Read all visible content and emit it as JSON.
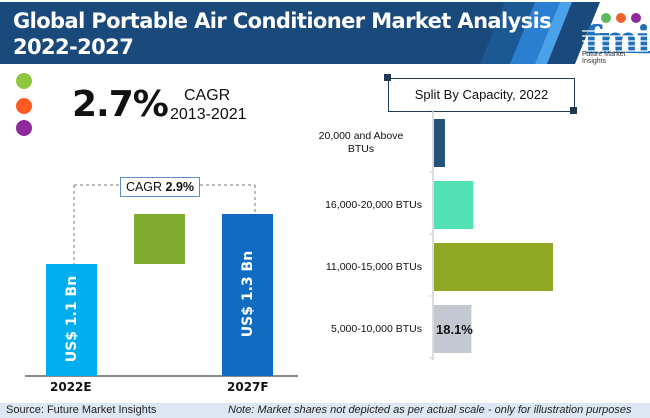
{
  "header": {
    "title_line1": "Global Portable Air Conditioner Market Analysis",
    "title_line2": "2022-2027",
    "brand_color": "#1a4a7c",
    "logo_text": "Future Market Insights",
    "logo_letters": "fmi"
  },
  "highlight": {
    "value": "2.7%",
    "label": "CAGR",
    "period": "2013-2021",
    "dot_colors": [
      "#8dc63f",
      "#ff5a1f",
      "#8e2a9b"
    ]
  },
  "footer": {
    "source": "Source: Future Market Insights",
    "note": "Note: Market shares not depicted as per actual scale - only for illustration purposes"
  },
  "chart_data": [
    {
      "type": "bar",
      "title": "Market Value",
      "categories": [
        "2022E",
        "2027F"
      ],
      "values": [
        1.1,
        1.3
      ],
      "value_labels": [
        "US$ 1.1 Bn",
        "US$ 1.3 Bn"
      ],
      "unit": "US$ Bn",
      "colors": [
        "#00adef",
        "#0f6cc2"
      ],
      "growth_color": "#7fac2f",
      "annotation": {
        "label": "CAGR",
        "value": "2.9%"
      },
      "xlabel": "",
      "ylabel": "",
      "grid": false
    },
    {
      "type": "bar",
      "orientation": "horizontal",
      "title": "Split By Capacity, 2022",
      "categories": [
        "20,000 and Above BTUs",
        "16,000-20,000 BTUs",
        "11,000-15,000 BTUs",
        "5,000-10,000 BTUs"
      ],
      "category_lines": [
        [
          "20,000 and Above",
          "BTUs"
        ],
        [
          "16,000-20,000 BTUs"
        ],
        [
          "11,000-15,000 BTUs"
        ],
        [
          "5,000-10,000 BTUs"
        ]
      ],
      "values": [
        5.3,
        19.0,
        57.6,
        18.1
      ],
      "unit": "%",
      "data_labels": [
        "",
        "",
        "",
        "18.1%"
      ],
      "colors": [
        "#24527c",
        "#52e0b5",
        "#8fa823",
        "#c3c8d2"
      ],
      "xlim": [
        0,
        70
      ],
      "grid": false
    }
  ]
}
